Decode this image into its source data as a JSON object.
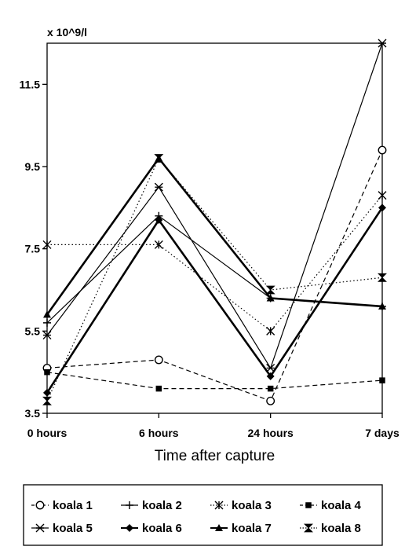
{
  "chart_data": {
    "type": "line",
    "unit_label": "x 10^9/l",
    "xlabel": "Time after capture",
    "categories": [
      "0 hours",
      "6 hours",
      "24 hours",
      "7 days"
    ],
    "ylim": [
      3.5,
      12.5
    ],
    "yticks": [
      3.5,
      5.5,
      7.5,
      9.5,
      11.5
    ],
    "ytick_labels": [
      "3.5",
      "5.5",
      "7.5",
      "9.5",
      "11.5"
    ],
    "legend_position": "bottom",
    "series": [
      {
        "name": "koala 1",
        "values": [
          4.6,
          4.8,
          3.8,
          9.9
        ],
        "marker": "circle-open",
        "line": "dashed",
        "width": 1.2
      },
      {
        "name": "koala 2",
        "values": [
          5.7,
          8.3,
          6.3,
          6.1
        ],
        "marker": "plus",
        "line": "solid",
        "width": 1.2
      },
      {
        "name": "koala 3",
        "values": [
          7.6,
          7.6,
          5.5,
          8.8
        ],
        "marker": "asterisk",
        "line": "dotted",
        "width": 1.2
      },
      {
        "name": "koala 4",
        "values": [
          4.5,
          4.1,
          4.1,
          4.3
        ],
        "marker": "square",
        "line": "dashed",
        "width": 1.2
      },
      {
        "name": "koala 5",
        "values": [
          5.4,
          9.0,
          4.6,
          12.5
        ],
        "marker": "x",
        "line": "solid",
        "width": 1.2
      },
      {
        "name": "koala 6",
        "values": [
          4.0,
          8.2,
          4.4,
          8.5
        ],
        "marker": "diamond",
        "line": "solid",
        "width": 2.6
      },
      {
        "name": "koala 7",
        "values": [
          5.9,
          9.7,
          6.3,
          6.1
        ],
        "marker": "triangle",
        "line": "solid",
        "width": 2.6
      },
      {
        "name": "koala 8",
        "values": [
          3.8,
          9.7,
          6.5,
          6.8
        ],
        "marker": "hourglass",
        "line": "dotted",
        "width": 1.2
      }
    ]
  }
}
